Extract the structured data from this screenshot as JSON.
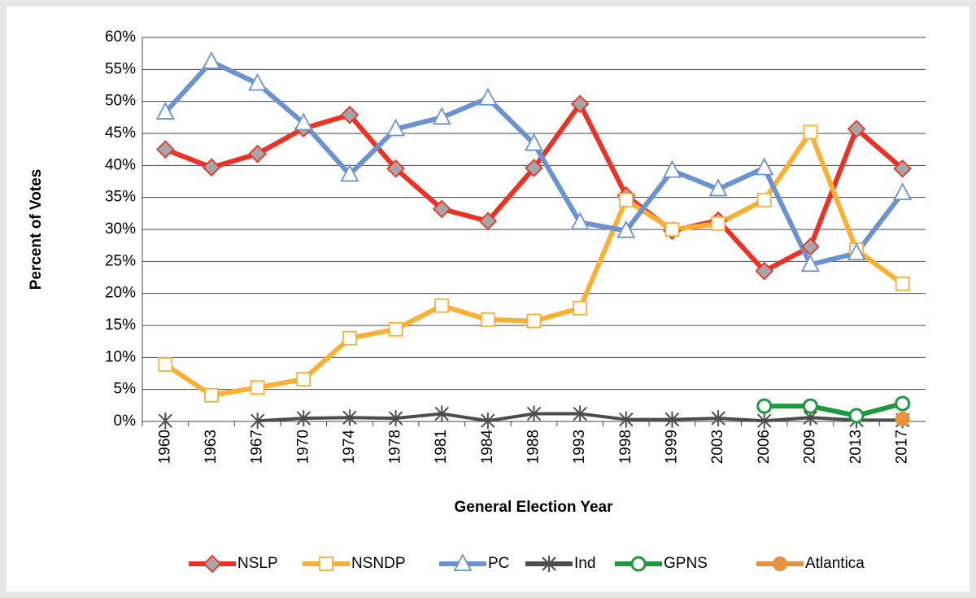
{
  "chart_data": {
    "type": "line",
    "xlabel": "General Election Year",
    "ylabel": "Percent of Votes",
    "categories": [
      "1960",
      "1963",
      "1967",
      "1970",
      "1974",
      "1978",
      "1981",
      "1984",
      "1988",
      "1993",
      "1998",
      "1999",
      "2003",
      "2006",
      "2009",
      "2013",
      "2017"
    ],
    "series": [
      {
        "name": "NSLP",
        "color": "#ee3124",
        "marker": "diamond",
        "values": [
          42.5,
          39.7,
          41.8,
          45.8,
          47.9,
          39.5,
          33.2,
          31.3,
          39.6,
          49.6,
          35.3,
          29.8,
          31.4,
          23.5,
          27.3,
          45.7,
          39.5
        ]
      },
      {
        "name": "NSNDP",
        "color": "#fbb034",
        "marker": "square",
        "values": [
          8.9,
          4.1,
          5.3,
          6.6,
          13.0,
          14.4,
          18.1,
          15.9,
          15.7,
          17.7,
          34.6,
          30.0,
          30.9,
          34.6,
          45.2,
          26.8,
          21.5
        ]
      },
      {
        "name": "PC",
        "color": "#6a93d1",
        "marker": "triangle",
        "values": [
          48.3,
          56.2,
          52.8,
          46.6,
          38.6,
          45.7,
          47.5,
          50.5,
          43.4,
          31.1,
          29.8,
          39.2,
          36.3,
          39.6,
          24.5,
          26.3,
          35.7
        ]
      },
      {
        "name": "Ind",
        "color": "#4d4d4d",
        "marker": "star",
        "values": [
          0.1,
          null,
          0.1,
          0.5,
          0.6,
          0.5,
          1.2,
          0.1,
          1.2,
          1.2,
          0.3,
          0.3,
          0.5,
          0.1,
          0.6,
          0.2,
          0.2
        ]
      },
      {
        "name": "GPNS",
        "color": "#1e9a3e",
        "marker": "circle",
        "values": [
          null,
          null,
          null,
          null,
          null,
          null,
          null,
          null,
          null,
          null,
          null,
          null,
          null,
          2.4,
          2.4,
          0.9,
          2.8
        ]
      },
      {
        "name": "Atlantica",
        "color": "#e8913f",
        "marker": "dot",
        "values": [
          null,
          null,
          null,
          null,
          null,
          null,
          null,
          null,
          null,
          null,
          null,
          null,
          null,
          null,
          null,
          null,
          0.4
        ]
      }
    ],
    "ylim": [
      0,
      60
    ],
    "yticks": [
      {
        "value": 0,
        "label": "0%"
      },
      {
        "value": 5,
        "label": "5%"
      },
      {
        "value": 10,
        "label": "10%"
      },
      {
        "value": 15,
        "label": "15%"
      },
      {
        "value": 20,
        "label": "20%"
      },
      {
        "value": 25,
        "label": "25%"
      },
      {
        "value": 30,
        "label": "30%"
      },
      {
        "value": 35,
        "label": "35%"
      },
      {
        "value": 40,
        "label": "40%"
      },
      {
        "value": 45,
        "label": "45%"
      },
      {
        "value": 50,
        "label": "50%"
      },
      {
        "value": 55,
        "label": "55%"
      },
      {
        "value": 60,
        "label": "60%"
      }
    ],
    "grid": true,
    "legend": "bottom"
  }
}
